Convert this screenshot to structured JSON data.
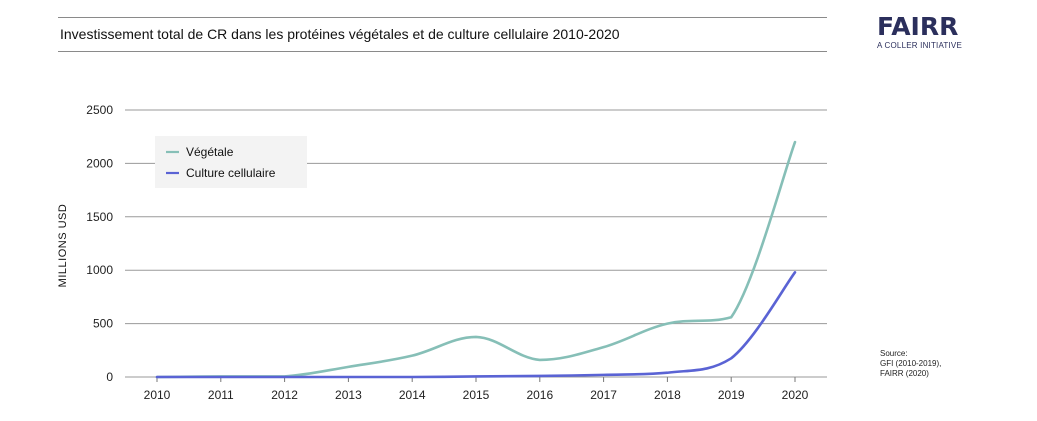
{
  "header": {
    "title": "Investissement total de CR dans les protéines végétales et de culture cellulaire 2010-2020"
  },
  "logo": {
    "wordmark": "FAIRR",
    "tagline": "A COLLER INITIATIVE",
    "color": "#2b2f5c"
  },
  "source": {
    "lines": [
      "Source:",
      "GFI (2010-2019),",
      "FAIRR (2020)"
    ]
  },
  "chart_data": {
    "type": "line",
    "title": "Investissement total de CR dans les protéines végétales et de culture cellulaire 2010-2020",
    "xlabel": "",
    "ylabel": "MILLIONS USD",
    "x": [
      "2010",
      "2011",
      "2012",
      "2013",
      "2014",
      "2015",
      "2016",
      "2017",
      "2018",
      "2019",
      "2020"
    ],
    "ylim": [
      0,
      2500
    ],
    "yticks": [
      "0",
      "500",
      "1000",
      "1500",
      "2000",
      "2500"
    ],
    "grid": true,
    "legend_position": "top-left",
    "series": [
      {
        "name": "Végétale",
        "color": "#86bfb7",
        "values": [
          0,
          5,
          5,
          95,
          200,
          375,
          160,
          280,
          500,
          560,
          2200
        ]
      },
      {
        "name": "Culture cellulaire",
        "color": "#5a63d4",
        "values": [
          0,
          0,
          0,
          0,
          0,
          5,
          10,
          20,
          40,
          175,
          980
        ]
      }
    ]
  }
}
